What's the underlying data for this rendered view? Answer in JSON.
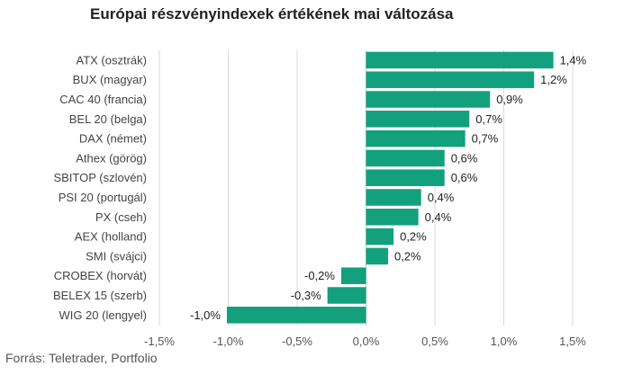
{
  "chart_data": {
    "type": "bar",
    "orientation": "horizontal",
    "title": "Európai részvényindexek értékének mai változása",
    "categories": [
      "ATX (osztrák)",
      "BUX (magyar)",
      "CAC 40 (francia)",
      "BEL 20 (belga)",
      "DAX (német)",
      "Athex (görög)",
      "SBITOP (szlovén)",
      "PSI 20 (portugál)",
      "PX (cseh)",
      "AEX (holland)",
      "SMI (svájci)",
      "CROBEX (horvát)",
      "BELEX 15 (szerb)",
      "WIG 20 (lengyel)"
    ],
    "values": [
      1.36,
      1.22,
      0.9,
      0.75,
      0.72,
      0.57,
      0.57,
      0.4,
      0.38,
      0.2,
      0.16,
      -0.18,
      -0.28,
      -1.01
    ],
    "value_labels": [
      "1,4%",
      "1,2%",
      "0,9%",
      "0,7%",
      "0,7%",
      "0,6%",
      "0,6%",
      "0,4%",
      "0,4%",
      "0,2%",
      "0,2%",
      "-0,2%",
      "-0,3%",
      "-1,0%"
    ],
    "xlim": [
      -1.5,
      1.5
    ],
    "xticks": [
      -1.5,
      -1.0,
      -0.5,
      0.0,
      0.5,
      1.0,
      1.5
    ],
    "xtick_labels": [
      "-1,5%",
      "-1,0%",
      "-0,5%",
      "0,0%",
      "0,5%",
      "1,0%",
      "1,5%"
    ],
    "grid": "vertical",
    "bar_color": "#13a07c",
    "source": "Forrás: Teletrader, Portfolio"
  }
}
